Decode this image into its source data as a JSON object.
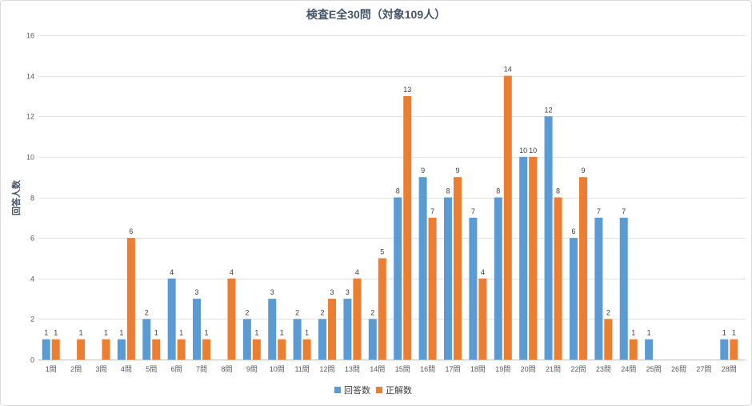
{
  "chart_data": {
    "type": "bar",
    "title": "検査E全30問（対象109人）",
    "xlabel": "",
    "ylabel": "回答人数",
    "ylim": [
      0,
      16
    ],
    "yticks": [
      0,
      2,
      4,
      6,
      8,
      10,
      12,
      14,
      16
    ],
    "grid": true,
    "legend": "bottom",
    "data_labels": true,
    "categories": [
      "1問",
      "2問",
      "3問",
      "4問",
      "5問",
      "6問",
      "7問",
      "8問",
      "9問",
      "10問",
      "11問",
      "12問",
      "13問",
      "14問",
      "15問",
      "16問",
      "17問",
      "18問",
      "19問",
      "20問",
      "21問",
      "22問",
      "23問",
      "24問",
      "25問",
      "26問",
      "27問",
      "28問"
    ],
    "series": [
      {
        "name": "回答数",
        "color": "#5B9BD5",
        "values": [
          1,
          null,
          null,
          1,
          2,
          4,
          3,
          null,
          2,
          3,
          2,
          2,
          3,
          2,
          8,
          9,
          8,
          7,
          8,
          10,
          12,
          6,
          7,
          7,
          1,
          null,
          null,
          1
        ]
      },
      {
        "name": "正解数",
        "color": "#ED7D31",
        "values": [
          1,
          1,
          1,
          6,
          1,
          1,
          1,
          4,
          1,
          1,
          1,
          3,
          4,
          5,
          13,
          7,
          9,
          4,
          14,
          10,
          8,
          9,
          2,
          1,
          null,
          null,
          null,
          1
        ]
      }
    ]
  }
}
